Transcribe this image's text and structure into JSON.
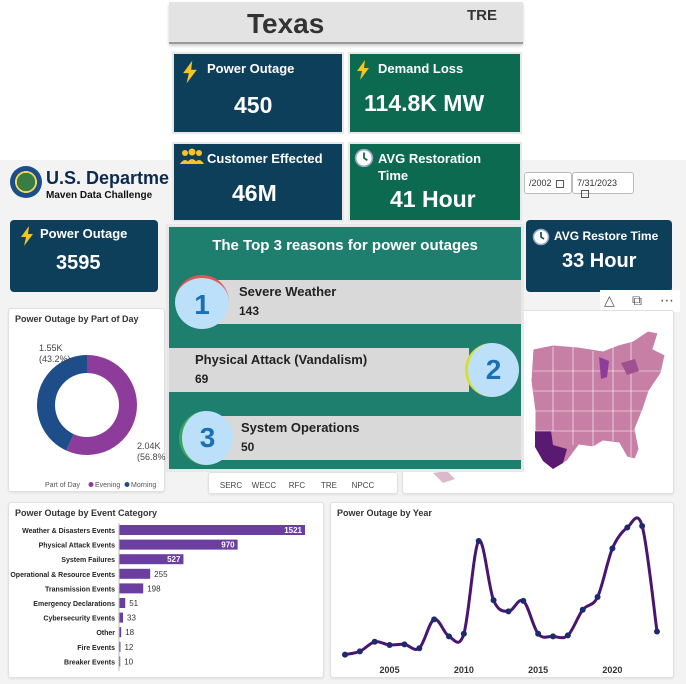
{
  "overview": {
    "state_title": "Texas",
    "region_code": "TRE",
    "cards": {
      "power_outage": {
        "label": "Power Outage",
        "value": "450",
        "icon": "lightning-icon"
      },
      "demand_loss": {
        "label": "Demand Loss",
        "value": "114.8K MW",
        "icon": "lightning-icon"
      },
      "customer_effected": {
        "label": "Customer Effected",
        "value": "46M",
        "icon": "people-icon"
      },
      "avg_restoration": {
        "label": "AVG Restoration Time",
        "value": "41 Hour",
        "icon": "clock-icon"
      }
    },
    "reasons_title": "The Top 3 reasons for power outages",
    "reasons": [
      {
        "rank": "1",
        "name": "Severe Weather",
        "count": "143"
      },
      {
        "rank": "2",
        "name": "Physical Attack (Vandalism)",
        "count": "69"
      },
      {
        "rank": "3",
        "name": "System Operations",
        "count": "50"
      }
    ]
  },
  "dashboard": {
    "header_title": "U.S. Departme",
    "header_subtitle": "Maven Data Challenge",
    "kpi_power_outage": {
      "label": "Power Outage",
      "value": "3595"
    },
    "kpi_avg_restore": {
      "label": "AVG Restore Time",
      "value": "33 Hour"
    },
    "date_start": "/2002",
    "date_end": "7/31/2023",
    "region_axis": [
      "SERC",
      "WECC",
      "RFC",
      "TRE",
      "NPCC"
    ]
  },
  "colors": {
    "dark_teal": "#0d3f5a",
    "green": "#0b6a4f",
    "reasons_bg": "#1f7f6e",
    "evening": "#8e3c9c",
    "morning": "#1d4e89",
    "bar": "#6b3fa0",
    "line": "#4a1570",
    "map_fill": "#c77fa6"
  },
  "chart_data": [
    {
      "type": "pie",
      "title": "Power Outage by Part of Day",
      "legend_title": "Part of Day",
      "labels": [
        "Evening",
        "Morning"
      ],
      "values": [
        2040,
        1550
      ],
      "display_labels": [
        "2.04K\n(56.8%)",
        "1.55K\n(43.2%)"
      ],
      "donut": true,
      "legend_position": "bottom"
    },
    {
      "type": "bar",
      "orientation": "horizontal",
      "title": "Power Outage by Event Category",
      "categories": [
        "Weather & Disasters Events",
        "Physical Attack Events",
        "System Failures",
        "Operational & Resource Events",
        "Transmission Events",
        "Emergency Declarations",
        "Cybersecurity Events",
        "Other",
        "Fire Events",
        "Breaker Events"
      ],
      "values": [
        1521,
        970,
        527,
        255,
        198,
        51,
        33,
        18,
        12,
        10
      ],
      "xlim": [
        0,
        1521
      ]
    },
    {
      "type": "line",
      "title": "Power Outage by Year",
      "x": [
        2002,
        2003,
        2004,
        2005,
        2006,
        2007,
        2008,
        2009,
        2010,
        2011,
        2012,
        2013,
        2014,
        2015,
        2016,
        2017,
        2018,
        2019,
        2020,
        2021,
        2022,
        2023
      ],
      "y": [
        20,
        30,
        60,
        50,
        52,
        40,
        130,
        77,
        85,
        375,
        190,
        155,
        188,
        85,
        77,
        80,
        160,
        200,
        352,
        417,
        422,
        92
      ],
      "xticks": [
        2005,
        2010,
        2015,
        2020
      ],
      "ylim": [
        0,
        450
      ]
    }
  ]
}
